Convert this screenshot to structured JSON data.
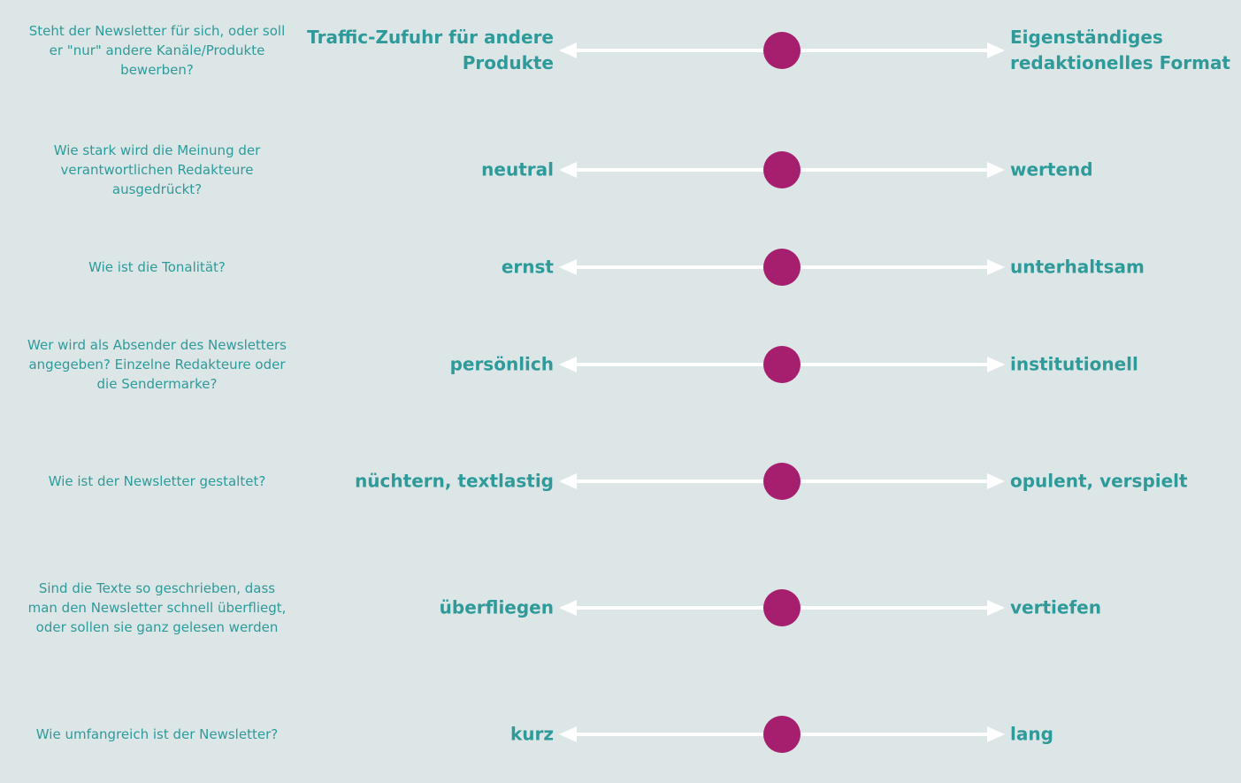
{
  "colors": {
    "background": "#dde6e6",
    "text": "#2e9a9a",
    "arrow": "#ffffff",
    "knob": "#a61e6e"
  },
  "rows": [
    {
      "question": "Steht der Newsletter für sich, oder soll er \"nur\" andere Kanäle/Produkte bewerben?",
      "left": "Traffic-Zufuhr für andere Produkte",
      "right": "Eigenständiges redaktionelles Format",
      "position": 0.5
    },
    {
      "question": "Wie stark wird die Meinung der verantwortlichen Redakteure ausgedrückt?",
      "left": "neutral",
      "right": "wertend",
      "position": 0.5
    },
    {
      "question": "Wie ist die Tonalität?",
      "left": "ernst",
      "right": "unterhaltsam",
      "position": 0.5
    },
    {
      "question": "Wer wird als Absender des Newsletters angegeben? Einzelne Redakteure oder die Sendermarke?",
      "left": "persönlich",
      "right": "institutionell",
      "position": 0.5
    },
    {
      "question": "Wie ist der Newsletter gestaltet?",
      "left": "nüchtern, textlastig",
      "right": "opulent, verspielt",
      "position": 0.5
    },
    {
      "question": "Sind die Texte so geschrieben, dass man den Newsletter schnell überfliegt, oder sollen sie ganz gelesen werden",
      "left": "überfliegen",
      "right": "vertiefen",
      "position": 0.5
    },
    {
      "question": "Wie umfangreich ist der Newsletter?",
      "left": "kurz",
      "right": "lang",
      "position": 0.5
    }
  ]
}
